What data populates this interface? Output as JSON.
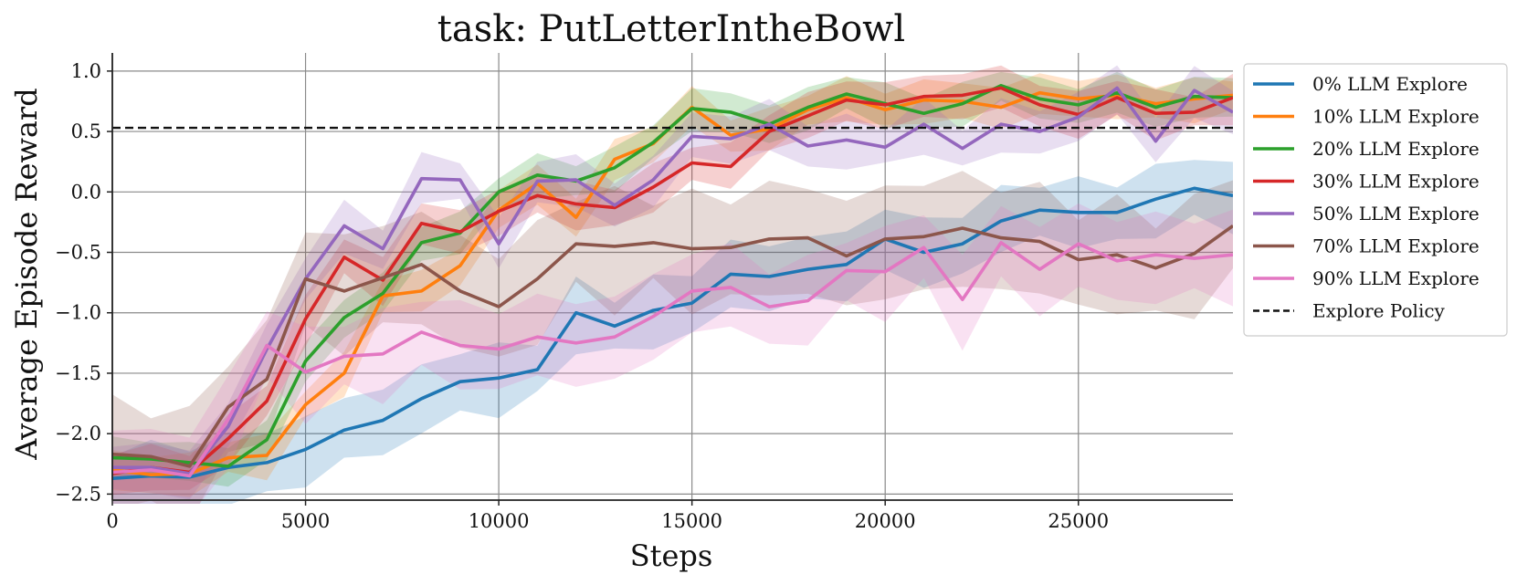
{
  "chart_data": {
    "type": "line",
    "title": "task: PutLetterIntheBowl",
    "xlabel": "Steps",
    "ylabel": "Average Episode Reward",
    "xlim": [
      0,
      29000
    ],
    "ylim": [
      -2.55,
      1.15
    ],
    "xticks": [
      0,
      5000,
      10000,
      15000,
      20000,
      25000
    ],
    "xtick_labels": [
      "0",
      "5000",
      "10000",
      "15000",
      "20000",
      "25000"
    ],
    "yticks": [
      1.0,
      0.5,
      0.0,
      -0.5,
      -1.0,
      -1.5,
      -2.0,
      -2.5
    ],
    "ytick_labels": [
      "1.0",
      "0.5",
      "0.0",
      "−0.5",
      "−1.0",
      "−1.5",
      "−2.0",
      "−2.5"
    ],
    "grid": true,
    "legend_position": "outside-right",
    "x": [
      0,
      1000,
      2000,
      3000,
      4000,
      5000,
      6000,
      7000,
      8000,
      9000,
      10000,
      11000,
      12000,
      13000,
      14000,
      15000,
      16000,
      17000,
      18000,
      19000,
      20000,
      21000,
      22000,
      23000,
      24000,
      25000,
      26000,
      27000,
      28000,
      29000
    ],
    "series": [
      {
        "name": "0% LLM Explore",
        "color": "#1f77b4",
        "band": 0.3,
        "values": [
          -2.37,
          -2.35,
          -2.36,
          -2.28,
          -2.24,
          -2.13,
          -1.97,
          -1.89,
          -1.71,
          -1.57,
          -1.54,
          -1.47,
          -1.0,
          -1.11,
          -0.98,
          -0.92,
          -0.68,
          -0.7,
          -0.64,
          -0.6,
          -0.39,
          -0.5,
          -0.43,
          -0.24,
          -0.15,
          -0.17,
          -0.17,
          -0.06,
          0.03,
          -0.03
        ]
      },
      {
        "name": "10% LLM Explore",
        "color": "#ff7f0e",
        "band": 0.18,
        "values": [
          -2.3,
          -2.34,
          -2.33,
          -2.2,
          -2.18,
          -1.76,
          -1.5,
          -0.86,
          -0.82,
          -0.61,
          -0.15,
          0.07,
          -0.21,
          0.27,
          0.4,
          0.7,
          0.47,
          0.52,
          0.68,
          0.78,
          0.68,
          0.76,
          0.75,
          0.7,
          0.82,
          0.77,
          0.8,
          0.73,
          0.77,
          0.8
        ]
      },
      {
        "name": "20% LLM Explore",
        "color": "#2ca02c",
        "band": 0.18,
        "values": [
          -2.2,
          -2.21,
          -2.24,
          -2.27,
          -2.05,
          -1.4,
          -1.04,
          -0.84,
          -0.42,
          -0.34,
          0.0,
          0.14,
          0.09,
          0.2,
          0.41,
          0.69,
          0.66,
          0.56,
          0.7,
          0.81,
          0.73,
          0.65,
          0.73,
          0.88,
          0.77,
          0.72,
          0.82,
          0.7,
          0.79,
          0.78
        ]
      },
      {
        "name": "30% LLM Explore",
        "color": "#d62728",
        "band": 0.2,
        "values": [
          -2.33,
          -2.28,
          -2.32,
          -2.04,
          -1.73,
          -1.05,
          -0.54,
          -0.73,
          -0.26,
          -0.33,
          -0.16,
          -0.03,
          -0.1,
          -0.13,
          0.04,
          0.24,
          0.21,
          0.5,
          0.63,
          0.76,
          0.72,
          0.79,
          0.8,
          0.86,
          0.72,
          0.64,
          0.78,
          0.65,
          0.66,
          0.78
        ]
      },
      {
        "name": "50% LLM Explore",
        "color": "#9467bd",
        "band": 0.22,
        "values": [
          -2.28,
          -2.28,
          -2.33,
          -1.94,
          -1.3,
          -0.72,
          -0.28,
          -0.47,
          0.11,
          0.1,
          -0.43,
          0.09,
          0.1,
          -0.11,
          0.1,
          0.46,
          0.44,
          0.56,
          0.38,
          0.43,
          0.37,
          0.56,
          0.36,
          0.56,
          0.5,
          0.62,
          0.86,
          0.42,
          0.84,
          0.66
        ]
      },
      {
        "name": "70% LLM Explore",
        "color": "#8c564b",
        "band": 0.5,
        "values": [
          -2.17,
          -2.19,
          -2.27,
          -1.78,
          -1.55,
          -0.72,
          -0.82,
          -0.71,
          -0.6,
          -0.82,
          -0.95,
          -0.72,
          -0.43,
          -0.45,
          -0.42,
          -0.47,
          -0.46,
          -0.39,
          -0.38,
          -0.53,
          -0.39,
          -0.37,
          -0.3,
          -0.38,
          -0.41,
          -0.56,
          -0.52,
          -0.63,
          -0.51,
          -0.28
        ]
      },
      {
        "name": "90% LLM Explore",
        "color": "#e377c2",
        "band": 0.38,
        "values": [
          -2.32,
          -2.3,
          -2.35,
          -1.88,
          -1.27,
          -1.49,
          -1.36,
          -1.34,
          -1.16,
          -1.27,
          -1.3,
          -1.2,
          -1.25,
          -1.2,
          -1.03,
          -0.82,
          -0.79,
          -0.95,
          -0.9,
          -0.65,
          -0.66,
          -0.46,
          -0.89,
          -0.42,
          -0.64,
          -0.43,
          -0.57,
          -0.52,
          -0.55,
          -0.52
        ]
      }
    ],
    "reference_line": {
      "name": "Explore Policy",
      "value": 0.53,
      "style": "dashed",
      "color": "#111111"
    }
  }
}
